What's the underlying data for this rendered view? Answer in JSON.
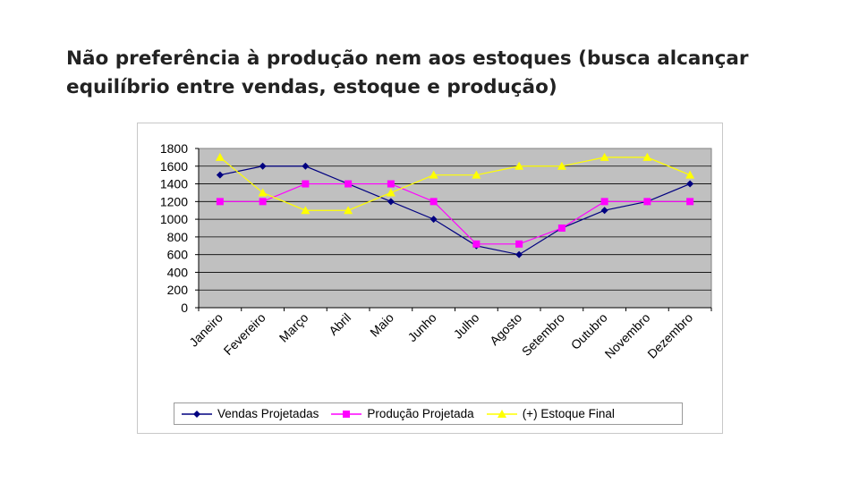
{
  "slide": {
    "title_line1": "Não preferência à produção nem aos estoques (busca alcançar",
    "title_line2": "equilíbrio entre vendas, estoque e produção)"
  },
  "chart_data": {
    "type": "line",
    "categories": [
      "Janeiro",
      "Fevereiro",
      "Março",
      "Abril",
      "Maio",
      "Junho",
      "Julho",
      "Agosto",
      "Setembro",
      "Outubro",
      "Novembro",
      "Dezembro"
    ],
    "ylim": [
      0,
      1800
    ],
    "yticks": [
      0,
      200,
      400,
      600,
      800,
      1000,
      1200,
      1400,
      1600,
      1800
    ],
    "grid": true,
    "legend_position": "bottom",
    "plot_background": "#c0c0c0",
    "series": [
      {
        "name": "Vendas Projetadas",
        "color": "#000080",
        "marker": "diamond",
        "values": [
          1500,
          1600,
          1600,
          1400,
          1200,
          1000,
          700,
          600,
          900,
          1100,
          1200,
          1400
        ]
      },
      {
        "name": "Produção Projetada",
        "color": "#ff00ff",
        "marker": "square",
        "values": [
          1200,
          1200,
          1400,
          1400,
          1400,
          1200,
          720,
          720,
          900,
          1200,
          1200,
          1200
        ]
      },
      {
        "name": "(+) Estoque Final",
        "color": "#ffff00",
        "marker": "triangle",
        "values": [
          1700,
          1300,
          1100,
          1100,
          1300,
          1500,
          1500,
          1600,
          1600,
          1700,
          1700,
          1500
        ]
      }
    ]
  }
}
